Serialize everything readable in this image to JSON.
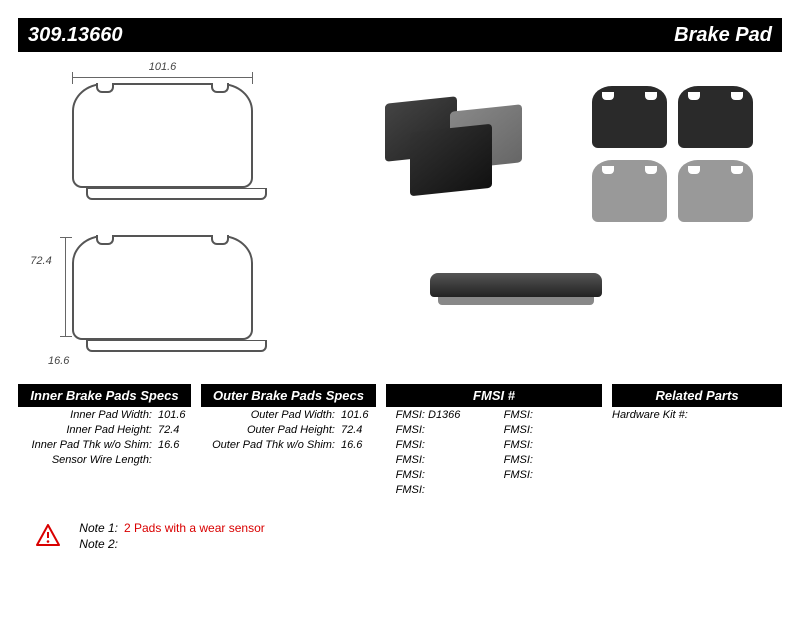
{
  "header": {
    "part_number": "309.13660",
    "part_type": "Brake Pad"
  },
  "dimensions": {
    "width": "101.6",
    "height": "72.4",
    "thickness": "16.6"
  },
  "inner": {
    "title": "Inner Brake Pads Specs",
    "rows": [
      {
        "label": "Inner Pad Width:",
        "value": "101.6"
      },
      {
        "label": "Inner Pad Height:",
        "value": "72.4"
      },
      {
        "label": "Inner Pad Thk w/o Shim:",
        "value": "16.6"
      },
      {
        "label": "Sensor Wire Length:",
        "value": ""
      }
    ]
  },
  "outer": {
    "title": "Outer Brake Pads Specs",
    "rows": [
      {
        "label": "Outer Pad Width:",
        "value": "101.6"
      },
      {
        "label": "Outer Pad Height:",
        "value": "72.4"
      },
      {
        "label": "Outer Pad Thk w/o Shim:",
        "value": "16.6"
      }
    ]
  },
  "fmsi": {
    "title": "FMSI #",
    "label": "FMSI:",
    "cells": [
      "D1366",
      "",
      "",
      "",
      "",
      "",
      "",
      "",
      "",
      "",
      ""
    ]
  },
  "related": {
    "title": "Related Parts",
    "rows": [
      {
        "label": "Hardware Kit #:",
        "value": ""
      }
    ]
  },
  "notes": {
    "note1_label": "Note 1:",
    "note1_text": "2 Pads with a wear sensor",
    "note2_label": "Note 2:",
    "note2_text": ""
  },
  "colors": {
    "header_bg": "#000000",
    "header_fg": "#ffffff",
    "note_text": "#d90000",
    "diagram_line": "#555555",
    "page_bg": "#ffffff"
  }
}
